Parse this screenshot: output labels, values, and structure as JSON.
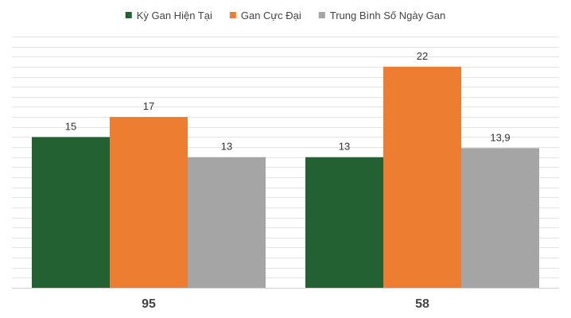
{
  "chart_data": {
    "type": "bar",
    "categories": [
      "95",
      "58"
    ],
    "series": [
      {
        "name": "Kỳ Gan Hiện Tại",
        "values": [
          15,
          13
        ],
        "color": "#236133"
      },
      {
        "name": "Gan Cực Đại",
        "values": [
          17,
          22
        ],
        "color": "#ed7d31"
      },
      {
        "name": "Trung Bình Số Ngày Gan",
        "values": [
          13,
          13.9
        ],
        "color": "#a5a5a5"
      }
    ],
    "data_labels": [
      [
        "15",
        "13"
      ],
      [
        "17",
        "22"
      ],
      [
        "13",
        "13,9"
      ]
    ],
    "ylim": [
      0,
      25
    ],
    "grid": true,
    "legend": "top-center"
  }
}
